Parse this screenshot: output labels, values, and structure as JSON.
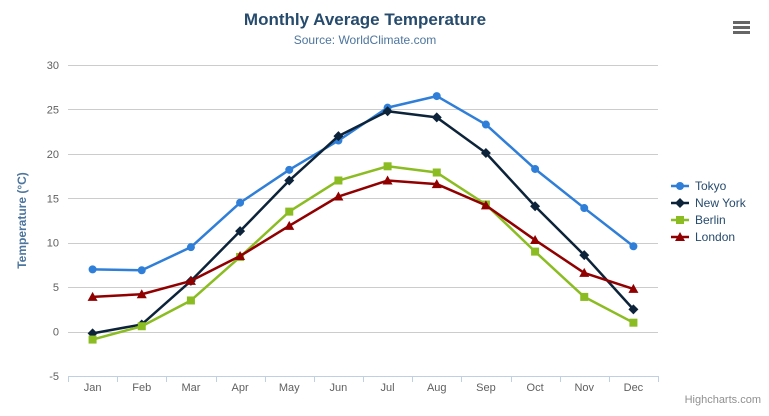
{
  "chart_data": {
    "type": "line",
    "title": "Monthly Average Temperature",
    "subtitle": "Source: WorldClimate.com",
    "categories": [
      "Jan",
      "Feb",
      "Mar",
      "Apr",
      "May",
      "Jun",
      "Jul",
      "Aug",
      "Sep",
      "Oct",
      "Nov",
      "Dec"
    ],
    "series": [
      {
        "name": "Tokyo",
        "color": "#2f7ed8",
        "marker": "circle",
        "values": [
          7.0,
          6.9,
          9.5,
          14.5,
          18.2,
          21.5,
          25.2,
          26.5,
          23.3,
          18.3,
          13.9,
          9.6
        ]
      },
      {
        "name": "New York",
        "color": "#0d233a",
        "marker": "diamond",
        "values": [
          -0.2,
          0.8,
          5.7,
          11.3,
          17.0,
          22.0,
          24.8,
          24.1,
          20.1,
          14.1,
          8.6,
          2.5
        ]
      },
      {
        "name": "Berlin",
        "color": "#8bbc21",
        "marker": "square",
        "values": [
          -0.9,
          0.6,
          3.5,
          8.4,
          13.5,
          17.0,
          18.6,
          17.9,
          14.3,
          9.0,
          3.9,
          1.0
        ]
      },
      {
        "name": "London",
        "color": "#910000",
        "marker": "triangle",
        "values": [
          3.9,
          4.2,
          5.7,
          8.5,
          11.9,
          15.2,
          17.0,
          16.6,
          14.2,
          10.3,
          6.6,
          4.8
        ]
      }
    ],
    "xlabel": "",
    "ylabel": "Temperature (°C)",
    "ylim": [
      -5,
      30
    ],
    "yticks": [
      -5,
      0,
      5,
      10,
      15,
      20,
      25,
      30
    ],
    "grid": true,
    "legend_position": "right"
  },
  "credits": "Highcharts.com",
  "export_menu": {
    "icon": "hamburger-icon"
  },
  "colors": {
    "grid_line": "#cccccc",
    "axis_line": "#c0d0e0",
    "tick_label": "#606060",
    "title": "#274b6d",
    "subtitle": "#4d759e",
    "axis_title": "#4d759e",
    "legend_text": "#274b6d",
    "credits_text": "#909090",
    "menu_icon": "#666666",
    "background": "#ffffff"
  }
}
